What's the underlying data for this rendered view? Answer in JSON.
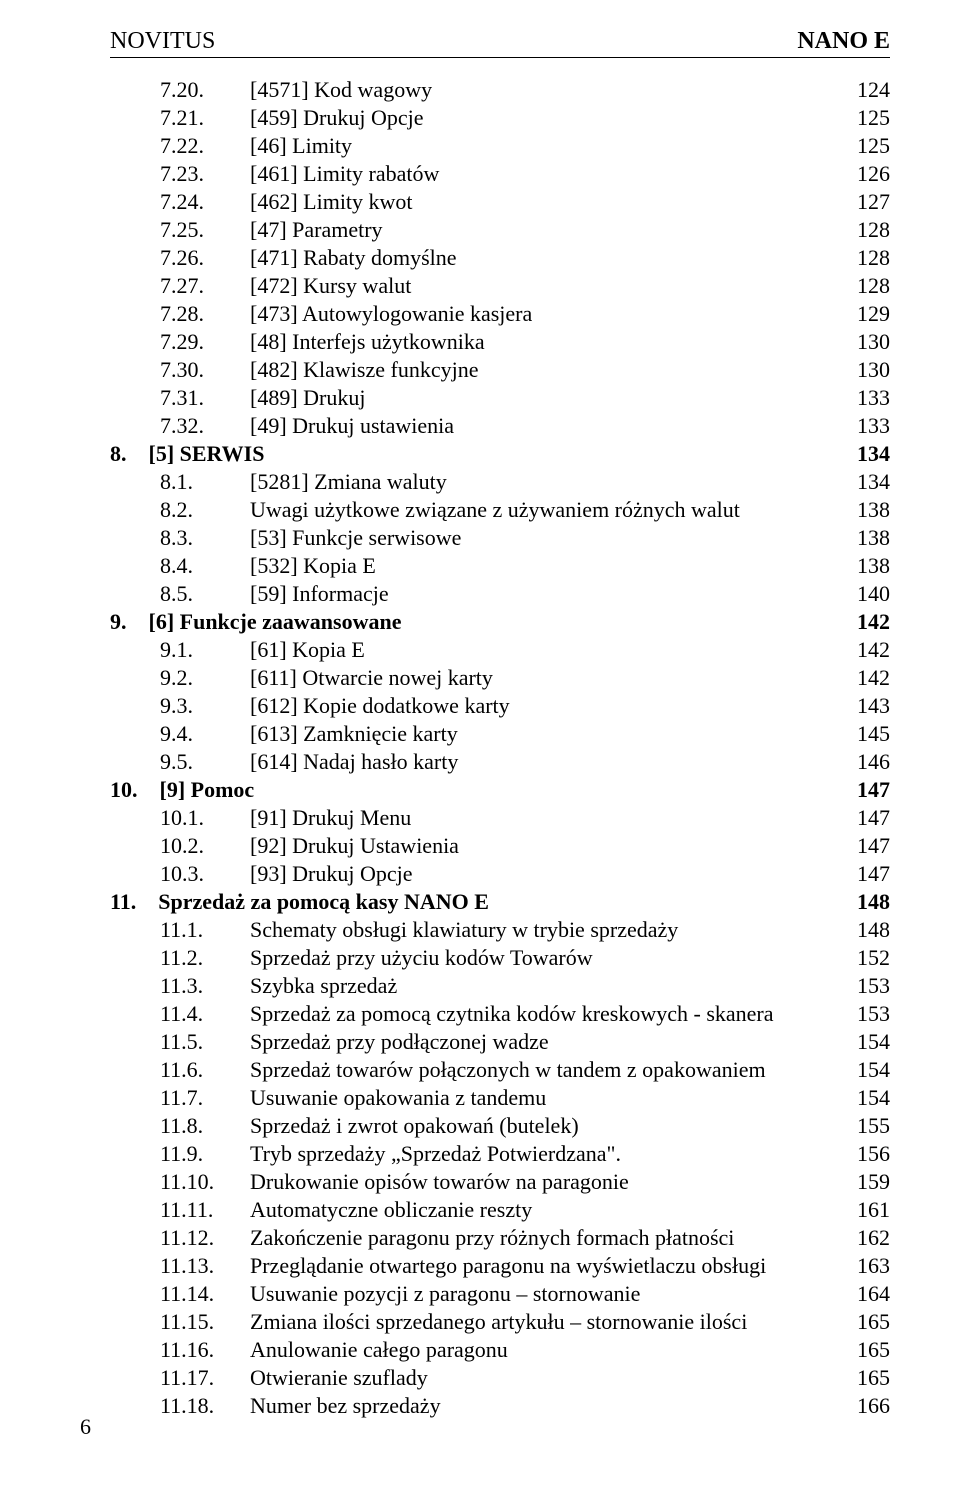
{
  "header": {
    "left": "NOVITUS",
    "right": "NANO E"
  },
  "footer_page_number": "6",
  "toc": [
    {
      "indent": 1,
      "bold": false,
      "num": "7.20.",
      "label": "[4571] Kod wagowy",
      "page": "124"
    },
    {
      "indent": 1,
      "bold": false,
      "num": "7.21.",
      "label": "[459] Drukuj Opcje",
      "page": "125"
    },
    {
      "indent": 1,
      "bold": false,
      "num": "7.22.",
      "label": "[46] Limity",
      "page": "125"
    },
    {
      "indent": 1,
      "bold": false,
      "num": "7.23.",
      "label": "[461] Limity rabatów",
      "page": "126"
    },
    {
      "indent": 1,
      "bold": false,
      "num": "7.24.",
      "label": "[462] Limity kwot",
      "page": "127"
    },
    {
      "indent": 1,
      "bold": false,
      "num": "7.25.",
      "label": "[47] Parametry",
      "page": "128"
    },
    {
      "indent": 1,
      "bold": false,
      "num": "7.26.",
      "label": "[471] Rabaty domyślne",
      "page": "128"
    },
    {
      "indent": 1,
      "bold": false,
      "num": "7.27.",
      "label": "[472] Kursy walut",
      "page": "128"
    },
    {
      "indent": 1,
      "bold": false,
      "num": "7.28.",
      "label": "[473] Autowylogowanie kasjera",
      "page": "129"
    },
    {
      "indent": 1,
      "bold": false,
      "num": "7.29.",
      "label": "[48] Interfejs użytkownika",
      "page": "130"
    },
    {
      "indent": 1,
      "bold": false,
      "num": "7.30.",
      "label": "[482] Klawisze funkcyjne",
      "page": "130"
    },
    {
      "indent": 1,
      "bold": false,
      "num": "7.31.",
      "label": "[489] Drukuj",
      "page": "133"
    },
    {
      "indent": 1,
      "bold": false,
      "num": "7.32.",
      "label": "[49] Drukuj ustawienia",
      "page": "133"
    },
    {
      "indent": 0,
      "bold": true,
      "num": "8.",
      "label": "[5] SERWIS",
      "page": "134"
    },
    {
      "indent": 1,
      "bold": false,
      "num": "8.1.",
      "label": "[5281] Zmiana waluty",
      "page": "134"
    },
    {
      "indent": 1,
      "bold": false,
      "num": "8.2.",
      "label": "Uwagi użytkowe związane z używaniem różnych walut",
      "page": "138"
    },
    {
      "indent": 1,
      "bold": false,
      "num": "8.3.",
      "label": "[53] Funkcje serwisowe",
      "page": "138"
    },
    {
      "indent": 1,
      "bold": false,
      "num": "8.4.",
      "label": "[532] Kopia E",
      "page": "138"
    },
    {
      "indent": 1,
      "bold": false,
      "num": "8.5.",
      "label": "[59] Informacje",
      "page": "140"
    },
    {
      "indent": 0,
      "bold": true,
      "num": "9.",
      "label": "[6] Funkcje zaawansowane",
      "page": "142"
    },
    {
      "indent": 1,
      "bold": false,
      "num": "9.1.",
      "label": "[61] Kopia E",
      "page": "142"
    },
    {
      "indent": 1,
      "bold": false,
      "num": "9.2.",
      "label": "[611] Otwarcie nowej karty",
      "page": "142"
    },
    {
      "indent": 1,
      "bold": false,
      "num": "9.3.",
      "label": "[612] Kopie dodatkowe karty",
      "page": "143"
    },
    {
      "indent": 1,
      "bold": false,
      "num": "9.4.",
      "label": "[613] Zamknięcie karty",
      "page": "145"
    },
    {
      "indent": 1,
      "bold": false,
      "num": "9.5.",
      "label": "[614] Nadaj hasło karty",
      "page": "146"
    },
    {
      "indent": 0,
      "bold": true,
      "num": "10.",
      "label": "[9] Pomoc",
      "page": "147"
    },
    {
      "indent": 1,
      "bold": false,
      "num": "10.1.",
      "label": "[91] Drukuj Menu",
      "page": "147"
    },
    {
      "indent": 1,
      "bold": false,
      "num": "10.2.",
      "label": "[92] Drukuj Ustawienia",
      "page": "147"
    },
    {
      "indent": 1,
      "bold": false,
      "num": "10.3.",
      "label": "[93] Drukuj Opcje",
      "page": "147"
    },
    {
      "indent": 0,
      "bold": true,
      "num": "11.",
      "label": "Sprzedaż za pomocą kasy NANO E",
      "page": "148"
    },
    {
      "indent": 1,
      "bold": false,
      "num": "11.1.",
      "label": "Schematy obsługi klawiatury w trybie sprzedaży",
      "page": "148"
    },
    {
      "indent": 1,
      "bold": false,
      "num": "11.2.",
      "label": "Sprzedaż przy użyciu kodów Towarów",
      "page": "152"
    },
    {
      "indent": 1,
      "bold": false,
      "num": "11.3.",
      "label": "Szybka sprzedaż",
      "page": "153"
    },
    {
      "indent": 1,
      "bold": false,
      "num": "11.4.",
      "label": "Sprzedaż za pomocą czytnika kodów kreskowych - skanera",
      "page": "153"
    },
    {
      "indent": 1,
      "bold": false,
      "num": "11.5.",
      "label": "Sprzedaż przy podłączonej wadze",
      "page": "154"
    },
    {
      "indent": 1,
      "bold": false,
      "num": "11.6.",
      "label": "Sprzedaż towarów połączonych w tandem z opakowaniem",
      "page": "154"
    },
    {
      "indent": 1,
      "bold": false,
      "num": "11.7.",
      "label": "Usuwanie opakowania z tandemu",
      "page": "154"
    },
    {
      "indent": 1,
      "bold": false,
      "num": "11.8.",
      "label": "Sprzedaż i zwrot opakowań (butelek)",
      "page": "155"
    },
    {
      "indent": 1,
      "bold": false,
      "num": "11.9.",
      "label": "Tryb sprzedaży „Sprzedaż Potwierdzana\".",
      "page": "156"
    },
    {
      "indent": 1,
      "bold": false,
      "num": "11.10.",
      "label": "Drukowanie opisów towarów na paragonie",
      "page": "159"
    },
    {
      "indent": 1,
      "bold": false,
      "num": "11.11.",
      "label": "Automatyczne obliczanie reszty",
      "page": "161"
    },
    {
      "indent": 1,
      "bold": false,
      "num": "11.12.",
      "label": "Zakończenie paragonu przy różnych formach płatności",
      "page": "162"
    },
    {
      "indent": 1,
      "bold": false,
      "num": "11.13.",
      "label": "Przeglądanie otwartego paragonu na wyświetlaczu obsługi",
      "page": "163"
    },
    {
      "indent": 1,
      "bold": false,
      "num": "11.14.",
      "label": "Usuwanie pozycji z paragonu – stornowanie",
      "page": "164"
    },
    {
      "indent": 1,
      "bold": false,
      "num": "11.15.",
      "label": "Zmiana ilości sprzedanego artykułu – stornowanie ilości",
      "page": "165"
    },
    {
      "indent": 1,
      "bold": false,
      "num": "11.16.",
      "label": "Anulowanie całego paragonu",
      "page": "165"
    },
    {
      "indent": 1,
      "bold": false,
      "num": "11.17.",
      "label": "Otwieranie szuflady",
      "page": "165"
    },
    {
      "indent": 1,
      "bold": false,
      "num": "11.18.",
      "label": "Numer bez sprzedaży",
      "page": "166"
    }
  ]
}
